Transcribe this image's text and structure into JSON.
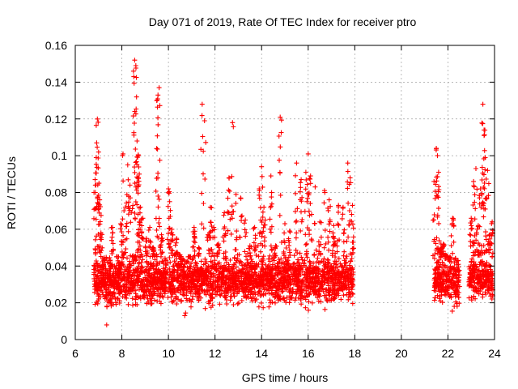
{
  "chart_data": {
    "type": "scatter",
    "title": "Day 071 of 2019, Rate Of TEC Index for receiver ptro",
    "xlabel": "GPS time / hours",
    "ylabel": "ROTI / TECUs",
    "xlim": [
      6,
      24
    ],
    "ylim": [
      0,
      0.16
    ],
    "xticks": [
      "6",
      "8",
      "10",
      "12",
      "14",
      "16",
      "18",
      "20",
      "22",
      "24"
    ],
    "yticks": [
      "0",
      "0.02",
      "0.04",
      "0.06",
      "0.08",
      "0.1",
      "0.12",
      "0.14",
      "0.16"
    ],
    "grid": true,
    "marker": "+",
    "color": "#ff0000",
    "series": [
      {
        "name": "ROTI",
        "x": [
          6.85,
          6.9,
          6.95,
          7.0,
          7.05,
          7.1,
          7.2,
          7.35,
          7.45,
          7.6,
          7.8,
          7.95,
          8.05,
          8.15,
          8.25,
          8.35,
          8.5,
          8.55,
          8.6,
          8.65,
          8.7,
          8.75,
          8.8,
          8.9,
          9.05,
          9.2,
          9.35,
          9.5,
          9.55,
          9.6,
          9.7,
          9.85,
          10.0,
          10.05,
          10.15,
          10.35,
          10.5,
          10.7,
          10.9,
          11.1,
          11.3,
          11.45,
          11.55,
          11.7,
          11.8,
          11.95,
          12.15,
          12.4,
          12.6,
          12.75,
          12.9,
          13.1,
          13.3,
          13.5,
          13.7,
          13.9,
          14.0,
          14.1,
          14.4,
          14.6,
          14.8,
          15.0,
          15.2,
          15.5,
          15.7,
          15.9,
          16.0,
          16.1,
          16.3,
          16.5,
          16.7,
          16.9,
          17.1,
          17.3,
          17.5,
          17.7,
          17.8,
          17.9,
          21.4,
          21.5,
          21.55,
          21.6,
          21.7,
          21.8,
          21.9,
          22.05,
          22.2,
          22.3,
          22.45,
          23.0,
          23.1,
          23.2,
          23.3,
          23.4,
          23.5,
          23.55,
          23.6,
          23.7,
          23.8,
          23.9
        ],
        "y": [
          0.087,
          0.099,
          0.12,
          0.102,
          0.076,
          0.058,
          0.03,
          0.008,
          0.02,
          0.061,
          0.045,
          0.063,
          0.101,
          0.072,
          0.095,
          0.084,
          0.146,
          0.152,
          0.149,
          0.108,
          0.1,
          0.09,
          0.072,
          0.066,
          0.055,
          0.061,
          0.05,
          0.13,
          0.133,
          0.137,
          0.057,
          0.025,
          0.082,
          0.075,
          0.06,
          0.055,
          0.046,
          0.013,
          0.045,
          0.061,
          0.05,
          0.128,
          0.119,
          0.057,
          0.072,
          0.061,
          0.052,
          0.069,
          0.088,
          0.118,
          0.079,
          0.077,
          0.065,
          0.051,
          0.061,
          0.082,
          0.094,
          0.072,
          0.089,
          0.051,
          0.121,
          0.063,
          0.059,
          0.096,
          0.087,
          0.091,
          0.101,
          0.089,
          0.083,
          0.064,
          0.081,
          0.076,
          0.062,
          0.073,
          0.072,
          0.096,
          0.088,
          0.073,
          0.086,
          0.104,
          0.1,
          0.091,
          0.052,
          0.052,
          0.046,
          0.044,
          0.066,
          0.031,
          0.023,
          0.066,
          0.086,
          0.093,
          0.062,
          0.082,
          0.128,
          0.114,
          0.099,
          0.092,
          0.057,
          0.064
        ],
        "dense_bands": [
          {
            "x_start": 6.8,
            "x_end": 17.95,
            "y_low": 0.015,
            "y_high": 0.05
          },
          {
            "x_start": 21.4,
            "x_end": 22.5,
            "y_low": 0.015,
            "y_high": 0.05
          },
          {
            "x_start": 22.9,
            "x_end": 24.0,
            "y_low": 0.018,
            "y_high": 0.05
          }
        ]
      }
    ]
  }
}
